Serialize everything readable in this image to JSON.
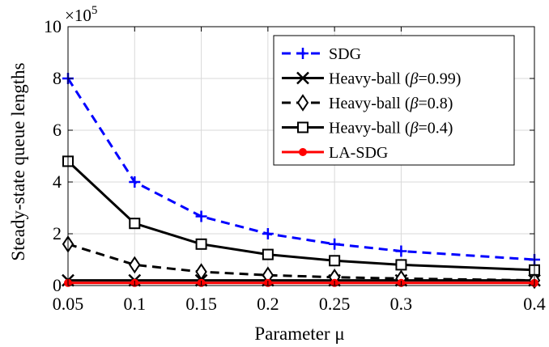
{
  "chart_data": {
    "type": "line",
    "multiplier_label": "×10",
    "multiplier_exp": "5",
    "xlabel": "Parameter μ",
    "ylabel": "Steady-state queue lengths",
    "x": [
      0.05,
      0.1,
      0.15,
      0.2,
      0.25,
      0.3,
      0.4
    ],
    "x_tick_labels": [
      "0.05",
      "0.1",
      "0.15",
      "0.2",
      "0.25",
      "0.3",
      "0.4"
    ],
    "xlim": [
      0.05,
      0.4
    ],
    "ylim": [
      0,
      10
    ],
    "y_ticks": [
      0,
      2,
      4,
      6,
      8,
      10
    ],
    "y_tick_labels": [
      "0",
      "2",
      "4",
      "6",
      "8",
      "10"
    ],
    "grid": true,
    "legend_position": "top-right",
    "series": [
      {
        "name": "SDG",
        "values": [
          8.0,
          4.0,
          2.67,
          2.0,
          1.6,
          1.33,
          1.0
        ],
        "color": "#0000ff",
        "dash": "dashed",
        "marker": "plus"
      },
      {
        "name": "Heavy-ball (β=0.99)",
        "values": [
          0.2,
          0.2,
          0.2,
          0.2,
          0.2,
          0.2,
          0.2
        ],
        "color": "#000000",
        "dash": "solid",
        "marker": "x"
      },
      {
        "name": "Heavy-ball (β=0.8)",
        "values": [
          1.6,
          0.8,
          0.53,
          0.4,
          0.32,
          0.27,
          0.2
        ],
        "color": "#000000",
        "dash": "dashed",
        "marker": "diamond"
      },
      {
        "name": "Heavy-ball (β=0.4)",
        "values": [
          4.8,
          2.4,
          1.6,
          1.2,
          0.96,
          0.8,
          0.6
        ],
        "color": "#000000",
        "dash": "solid",
        "marker": "square"
      },
      {
        "name": "LA-SDG",
        "values": [
          0.1,
          0.1,
          0.1,
          0.1,
          0.1,
          0.1,
          0.1
        ],
        "color": "#ff0000",
        "dash": "solid",
        "marker": "dot"
      }
    ]
  }
}
